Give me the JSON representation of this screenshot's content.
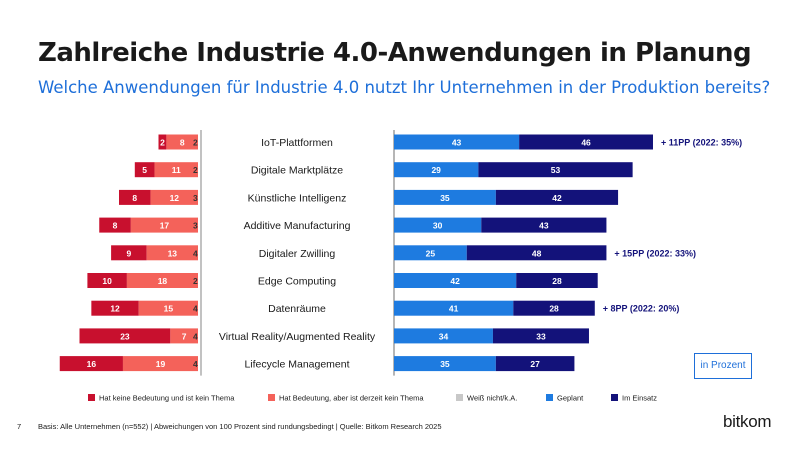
{
  "title": "Zahlreiche Industrie 4.0-Anwendungen in Planung",
  "subtitle": "Welche Anwendungen für Industrie 4.0 nutzt Ihr Unternehmen in der Produktion bereits?",
  "unit_label": "in Prozent",
  "footer": "Basis: Alle Unternehmen (n=552) | Abweichungen von 100 Prozent sind rundungsbedingt | Quelle: Bitkom Research 2025",
  "page_number": "7",
  "logo": "bitkom",
  "colors": {
    "keine_bedeutung": "#c8102e",
    "bedeutung_kein_thema": "#f4625a",
    "weiss_nicht": "#c8c8c8",
    "geplant": "#1e7be0",
    "im_einsatz": "#13127a",
    "annotation": "#13127a",
    "divider": "#9a9a9a"
  },
  "chart_data": {
    "type": "bar",
    "orientation": "horizontal",
    "stacked": true,
    "categories": [
      "IoT-Plattformen",
      "Digitale Marktplätze",
      "Künstliche Intelligenz",
      "Additive Manufacturing",
      "Digitaler Zwilling",
      "Edge Computing",
      "Datenräume",
      "Virtual Reality/Augmented Reality",
      "Lifecycle Management"
    ],
    "left_series": [
      {
        "name": "Hat keine Bedeutung und ist kein Thema",
        "color": "#c8102e",
        "values": [
          2,
          5,
          8,
          8,
          9,
          10,
          12,
          23,
          16
        ]
      },
      {
        "name": "Hat Bedeutung, aber ist derzeit kein Thema",
        "color": "#f4625a",
        "values": [
          8,
          11,
          12,
          17,
          13,
          18,
          15,
          7,
          19
        ]
      },
      {
        "name": "Weiß nicht/k.A.",
        "color": "#c8c8c8",
        "values": [
          2,
          2,
          3,
          3,
          4,
          2,
          4,
          4,
          4
        ]
      }
    ],
    "right_series": [
      {
        "name": "Geplant",
        "color": "#1e7be0",
        "values": [
          43,
          29,
          35,
          30,
          25,
          42,
          41,
          34,
          35
        ]
      },
      {
        "name": "Im Einsatz",
        "color": "#13127a",
        "values": [
          46,
          53,
          42,
          43,
          48,
          28,
          28,
          33,
          27
        ]
      }
    ],
    "annotations": [
      "+ 11PP (2022: 35%)",
      "",
      "",
      "",
      "+ 15PP (2022: 33%)",
      "",
      "+ 8PP (2022: 20%)",
      "",
      ""
    ],
    "legend": [
      "Hat keine Bedeutung und ist kein Thema",
      "Hat Bedeutung, aber ist derzeit kein Thema",
      "Weiß nicht/k.A.",
      "Geplant",
      "Im Einsatz"
    ],
    "legend_position": "bottom"
  }
}
